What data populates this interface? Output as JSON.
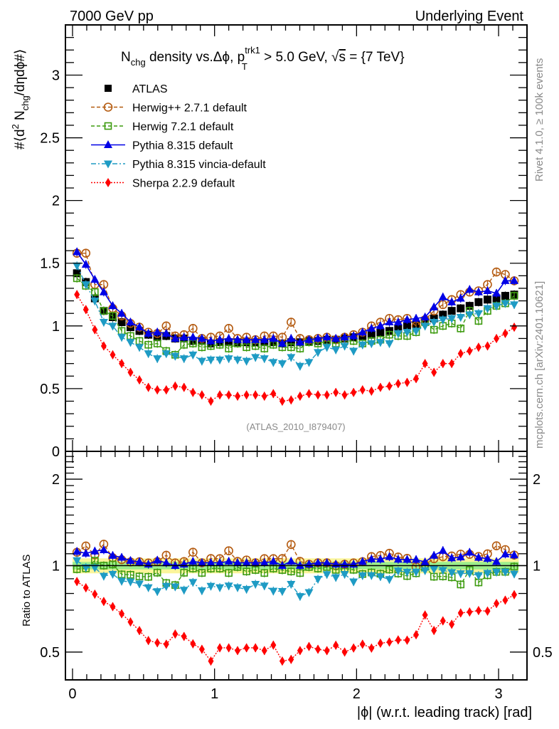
{
  "chart_data": {
    "type": "scatter",
    "header_left": "7000 GeV pp",
    "header_right": "Underlying Event",
    "title": {
      "main": "N",
      "main_sub": "chg",
      "rest1": " density vs.Δϕ, p",
      "pt_sup": "trk1",
      "pt_sub": "T",
      "rest2": " > 5.0 GeV, ",
      "sqrt": "√",
      "s": "s",
      "rest3": " = {7 TeV}"
    },
    "ylabel": {
      "a": "#⟨d",
      "sup": "2",
      "b": " N",
      "sub": "chg",
      "c": "/dηdϕ#⟩"
    },
    "xlabel": "|ϕ| (w.r.t. leading track) [rad]",
    "ratio_ylabel": "Ratio to ATLAS",
    "watermark": "(ATLAS_2010_I879407)",
    "side_text_top": "Rivet 4.1.0, ≥ 100k events",
    "side_text_bottom": "mcplots.cern.ch [arXiv:2401.10621]",
    "xlim": [
      -0.05,
      3.2
    ],
    "ylim": [
      0,
      3.4
    ],
    "ratio_ylim": [
      0.4,
      2.5
    ],
    "ratio_scale": "log",
    "x_ticks": [
      "0",
      "1",
      "2",
      "3"
    ],
    "y_ticks": [
      "0",
      "0.5",
      "1",
      "1.5",
      "2",
      "2.5",
      "3"
    ],
    "ratio_ticks": [
      "0.5",
      "1",
      "2"
    ],
    "band": {
      "yellow": 0.06,
      "green": 0.03
    },
    "x": [
      0.031,
      0.094,
      0.157,
      0.22,
      0.283,
      0.346,
      0.408,
      0.471,
      0.534,
      0.597,
      0.66,
      0.723,
      0.785,
      0.848,
      0.911,
      0.974,
      1.037,
      1.1,
      1.162,
      1.225,
      1.288,
      1.351,
      1.414,
      1.477,
      1.539,
      1.602,
      1.665,
      1.728,
      1.791,
      1.854,
      1.916,
      1.979,
      2.042,
      2.105,
      2.168,
      2.231,
      2.293,
      2.356,
      2.419,
      2.482,
      2.545,
      2.608,
      2.67,
      2.733,
      2.796,
      2.859,
      2.922,
      2.985,
      3.047,
      3.11
    ],
    "legend_position": "top-left",
    "series": [
      {
        "name": "ATLAS",
        "color": "#000000",
        "marker": "square-filled",
        "line": "none",
        "values": [
          1.42,
          1.35,
          1.22,
          1.12,
          1.07,
          1.03,
          0.99,
          0.96,
          0.93,
          0.91,
          0.92,
          0.9,
          0.9,
          0.88,
          0.88,
          0.86,
          0.87,
          0.87,
          0.87,
          0.87,
          0.87,
          0.87,
          0.87,
          0.86,
          0.87,
          0.87,
          0.88,
          0.88,
          0.89,
          0.89,
          0.9,
          0.91,
          0.92,
          0.93,
          0.95,
          0.96,
          0.98,
          1.0,
          1.01,
          1.04,
          1.06,
          1.09,
          1.12,
          1.14,
          1.16,
          1.19,
          1.21,
          1.22,
          1.24,
          1.25
        ]
      },
      {
        "name": "Herwig++ 2.7.1 default",
        "color": "#b45a0f",
        "marker": "circle-open",
        "line": "dashed",
        "values": [
          1.58,
          1.58,
          1.33,
          1.33,
          1.14,
          1.08,
          1.02,
          0.99,
          0.95,
          0.94,
          1.0,
          0.92,
          0.93,
          0.98,
          0.9,
          0.91,
          0.92,
          0.98,
          0.9,
          0.91,
          0.89,
          0.92,
          0.92,
          0.91,
          1.03,
          0.9,
          0.89,
          0.9,
          0.91,
          0.89,
          0.91,
          0.93,
          0.95,
          1.0,
          1.03,
          1.06,
          1.05,
          1.06,
          1.0,
          1.05,
          1.12,
          1.17,
          1.21,
          1.25,
          1.27,
          1.28,
          1.33,
          1.43,
          1.41,
          1.36
        ]
      },
      {
        "name": "Herwig 7.2.1 default",
        "color": "#3d9b0f",
        "marker": "square-open",
        "line": "dashed",
        "values": [
          1.38,
          1.32,
          1.27,
          1.12,
          1.08,
          0.96,
          0.92,
          0.88,
          0.85,
          0.86,
          0.8,
          0.77,
          0.85,
          0.86,
          0.83,
          0.84,
          0.85,
          0.82,
          0.86,
          0.83,
          0.84,
          0.82,
          0.85,
          0.83,
          0.83,
          0.82,
          0.87,
          0.86,
          0.88,
          0.86,
          0.88,
          0.88,
          0.86,
          0.88,
          0.89,
          0.93,
          0.92,
          0.92,
          0.95,
          1.03,
          0.97,
          1.0,
          1.02,
          0.98,
          1.12,
          1.04,
          1.12,
          1.16,
          1.18,
          1.24
        ]
      },
      {
        "name": "Pythia 8.315 default",
        "color": "#0000e6",
        "marker": "triangle-up-filled",
        "line": "solid",
        "values": [
          1.59,
          1.49,
          1.37,
          1.27,
          1.16,
          1.1,
          1.03,
          0.99,
          0.94,
          0.95,
          0.94,
          0.9,
          0.91,
          0.91,
          0.9,
          0.88,
          0.89,
          0.9,
          0.89,
          0.89,
          0.89,
          0.89,
          0.9,
          0.86,
          0.9,
          0.87,
          0.89,
          0.9,
          0.91,
          0.9,
          0.91,
          0.92,
          0.95,
          0.98,
          1.0,
          1.03,
          1.03,
          1.05,
          1.06,
          1.07,
          1.15,
          1.23,
          1.19,
          1.22,
          1.29,
          1.27,
          1.28,
          1.26,
          1.36,
          1.36
        ]
      },
      {
        "name": "Pythia 8.315 vincia-default",
        "color": "#1e9bc4",
        "marker": "triangle-down-filled",
        "line": "dashdot",
        "values": [
          1.48,
          1.33,
          1.2,
          1.03,
          1.0,
          0.91,
          0.87,
          0.83,
          0.78,
          0.74,
          0.78,
          0.76,
          0.74,
          0.77,
          0.72,
          0.73,
          0.73,
          0.74,
          0.73,
          0.72,
          0.75,
          0.74,
          0.71,
          0.7,
          0.75,
          0.68,
          0.71,
          0.79,
          0.83,
          0.81,
          0.84,
          0.8,
          0.85,
          0.86,
          0.87,
          0.86,
          0.94,
          0.95,
          0.96,
          1.0,
          1.03,
          1.05,
          1.06,
          1.07,
          1.09,
          1.1,
          1.14,
          1.16,
          1.18,
          1.17
        ]
      },
      {
        "name": "Sherpa 2.2.9 default",
        "color": "#ff0000",
        "marker": "diamond-filled",
        "line": "dotted",
        "values": [
          1.25,
          1.13,
          0.97,
          0.84,
          0.77,
          0.7,
          0.63,
          0.57,
          0.51,
          0.49,
          0.49,
          0.52,
          0.51,
          0.47,
          0.45,
          0.4,
          0.45,
          0.45,
          0.44,
          0.45,
          0.45,
          0.44,
          0.46,
          0.4,
          0.41,
          0.44,
          0.46,
          0.45,
          0.45,
          0.47,
          0.45,
          0.47,
          0.49,
          0.48,
          0.51,
          0.52,
          0.54,
          0.55,
          0.58,
          0.7,
          0.63,
          0.7,
          0.7,
          0.78,
          0.8,
          0.83,
          0.84,
          0.9,
          0.94,
          0.99
        ]
      }
    ]
  }
}
